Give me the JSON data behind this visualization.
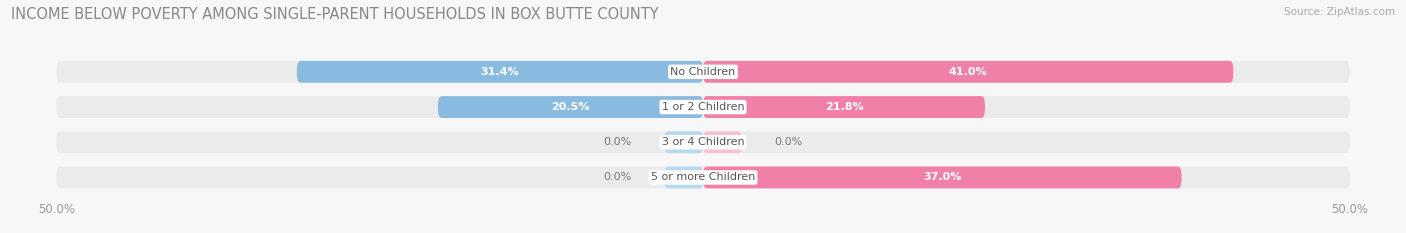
{
  "title": "INCOME BELOW POVERTY AMONG SINGLE-PARENT HOUSEHOLDS IN BOX BUTTE COUNTY",
  "source": "Source: ZipAtlas.com",
  "categories": [
    "No Children",
    "1 or 2 Children",
    "3 or 4 Children",
    "5 or more Children"
  ],
  "single_father": [
    31.4,
    20.5,
    0.0,
    0.0
  ],
  "single_mother": [
    41.0,
    21.8,
    0.0,
    37.0
  ],
  "father_color": "#88bbdf",
  "mother_color": "#f080a8",
  "father_color_light": "#b8d8ee",
  "mother_color_light": "#f8c0d4",
  "bar_bg_color": "#ebebeb",
  "bg_color": "#f7f7f7",
  "x_min": -50.0,
  "x_max": 50.0,
  "bar_height": 0.62,
  "title_fontsize": 10.5,
  "label_fontsize": 8.0,
  "value_fontsize": 8.0,
  "tick_fontsize": 8.5,
  "legend_fontsize": 8.5,
  "source_fontsize": 7.5
}
